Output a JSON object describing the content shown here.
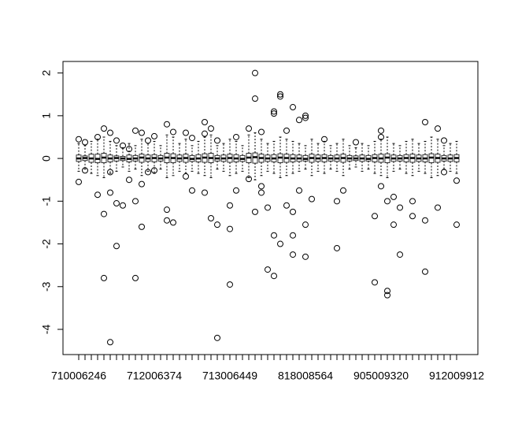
{
  "chart_data": {
    "type": "boxplot",
    "categories": [
      "710006246",
      null,
      null,
      null,
      null,
      null,
      null,
      null,
      null,
      null,
      null,
      null,
      "712006374",
      null,
      null,
      null,
      null,
      null,
      null,
      null,
      null,
      null,
      null,
      null,
      "713006449",
      null,
      null,
      null,
      null,
      null,
      null,
      null,
      null,
      null,
      null,
      null,
      "818008564",
      null,
      null,
      null,
      null,
      null,
      null,
      null,
      null,
      null,
      null,
      null,
      "905009320",
      null,
      null,
      null,
      null,
      null,
      null,
      null,
      null,
      null,
      null,
      null,
      "912009912"
    ],
    "whisker_high": [
      0.35,
      0.3,
      0.4,
      0.45,
      0.5,
      0.4,
      0.3,
      0.25,
      0.35,
      0.3,
      0.45,
      0.35,
      0.4,
      0.3,
      0.55,
      0.5,
      0.35,
      0.45,
      0.3,
      0.4,
      0.5,
      0.55,
      0.3,
      0.35,
      0.45,
      0.4,
      0.3,
      0.55,
      0.6,
      0.45,
      0.35,
      0.4,
      0.5,
      0.45,
      0.4,
      0.35,
      0.3,
      0.45,
      0.35,
      0.4,
      0.3,
      0.35,
      0.45,
      0.3,
      0.25,
      0.35,
      0.3,
      0.4,
      0.45,
      0.5,
      0.35,
      0.3,
      0.4,
      0.45,
      0.35,
      0.4,
      0.5,
      0.45,
      0.3,
      0.35,
      0.4
    ],
    "q3": [
      0.08,
      0.06,
      0.1,
      0.1,
      0.12,
      0.08,
      0.06,
      0.05,
      0.08,
      0.07,
      0.1,
      0.08,
      0.09,
      0.07,
      0.12,
      0.11,
      0.08,
      0.1,
      0.07,
      0.09,
      0.11,
      0.12,
      0.07,
      0.08,
      0.1,
      0.09,
      0.07,
      0.12,
      0.13,
      0.1,
      0.08,
      0.09,
      0.11,
      0.1,
      0.09,
      0.08,
      0.07,
      0.1,
      0.08,
      0.09,
      0.07,
      0.08,
      0.1,
      0.07,
      0.06,
      0.08,
      0.07,
      0.09,
      0.1,
      0.11,
      0.08,
      0.07,
      0.09,
      0.1,
      0.08,
      0.09,
      0.11,
      0.1,
      0.07,
      0.08,
      0.09
    ],
    "median": [
      0.0,
      0.01,
      0.0,
      -0.01,
      0.02,
      0.0,
      0.01,
      0.0,
      -0.01,
      0.0,
      0.02,
      0.0,
      0.01,
      0.0,
      0.02,
      0.01,
      0.0,
      0.01,
      -0.01,
      0.0,
      0.02,
      0.01,
      0.0,
      0.0,
      0.01,
      0.0,
      -0.01,
      0.02,
      0.03,
      0.01,
      0.0,
      0.0,
      0.02,
      0.01,
      0.0,
      0.0,
      -0.01,
      0.01,
      0.0,
      0.01,
      0.0,
      0.0,
      0.01,
      0.0,
      0.0,
      0.0,
      -0.01,
      0.01,
      0.0,
      0.02,
      0.0,
      0.0,
      0.01,
      0.01,
      0.0,
      0.0,
      0.02,
      0.01,
      0.0,
      0.0,
      0.01
    ],
    "q1": [
      -0.07,
      -0.05,
      -0.09,
      -0.1,
      -0.1,
      -0.08,
      -0.06,
      -0.05,
      -0.08,
      -0.06,
      -0.09,
      -0.07,
      -0.08,
      -0.06,
      -0.1,
      -0.1,
      -0.07,
      -0.09,
      -0.07,
      -0.08,
      -0.09,
      -0.1,
      -0.06,
      -0.07,
      -0.09,
      -0.08,
      -0.07,
      -0.1,
      -0.11,
      -0.09,
      -0.07,
      -0.08,
      -0.1,
      -0.09,
      -0.08,
      -0.07,
      -0.06,
      -0.09,
      -0.07,
      -0.08,
      -0.06,
      -0.07,
      -0.09,
      -0.06,
      -0.05,
      -0.07,
      -0.06,
      -0.08,
      -0.09,
      -0.1,
      -0.07,
      -0.06,
      -0.08,
      -0.09,
      -0.07,
      -0.08,
      -0.1,
      -0.09,
      -0.06,
      -0.07,
      -0.08
    ],
    "whisker_low": [
      -0.3,
      -0.25,
      -0.35,
      -0.4,
      -0.45,
      -0.35,
      -0.3,
      -0.2,
      -0.3,
      -0.25,
      -0.4,
      -0.3,
      -0.35,
      -0.25,
      -0.45,
      -0.4,
      -0.3,
      -0.35,
      -0.3,
      -0.35,
      -0.4,
      -0.45,
      -0.25,
      -0.3,
      -0.4,
      -0.35,
      -0.3,
      -0.45,
      -0.5,
      -0.4,
      -0.3,
      -0.35,
      -0.45,
      -0.4,
      -0.35,
      -0.3,
      -0.25,
      -0.4,
      -0.3,
      -0.35,
      -0.25,
      -0.3,
      -0.4,
      -0.25,
      -0.2,
      -0.3,
      -0.25,
      -0.35,
      -0.4,
      -0.45,
      -0.3,
      -0.25,
      -0.35,
      -0.4,
      -0.3,
      -0.35,
      -0.45,
      -0.4,
      -0.25,
      -0.3,
      -0.35
    ],
    "outliers": [
      [
        0,
        0.45
      ],
      [
        0,
        -0.55
      ],
      [
        1,
        -0.28
      ],
      [
        1,
        0.38
      ],
      [
        3,
        -0.85
      ],
      [
        3,
        0.5
      ],
      [
        4,
        -1.3
      ],
      [
        4,
        -2.8
      ],
      [
        4,
        0.7
      ],
      [
        5,
        -4.3
      ],
      [
        5,
        -0.8
      ],
      [
        5,
        0.6
      ],
      [
        5,
        -0.32
      ],
      [
        6,
        -2.05
      ],
      [
        6,
        -1.05
      ],
      [
        6,
        0.42
      ],
      [
        7,
        -1.1
      ],
      [
        7,
        0.3
      ],
      [
        8,
        -0.5
      ],
      [
        8,
        0.22
      ],
      [
        9,
        -2.8
      ],
      [
        9,
        -1.0
      ],
      [
        9,
        0.65
      ],
      [
        10,
        -1.6
      ],
      [
        10,
        -0.6
      ],
      [
        10,
        0.6
      ],
      [
        11,
        -0.32
      ],
      [
        11,
        0.42
      ],
      [
        12,
        0.52
      ],
      [
        12,
        -0.28
      ],
      [
        14,
        -1.2
      ],
      [
        14,
        -1.45
      ],
      [
        14,
        0.8
      ],
      [
        15,
        -1.5
      ],
      [
        15,
        0.62
      ],
      [
        17,
        -0.42
      ],
      [
        17,
        0.6
      ],
      [
        18,
        -0.75
      ],
      [
        18,
        0.48
      ],
      [
        20,
        -0.8
      ],
      [
        20,
        0.85
      ],
      [
        20,
        0.58
      ],
      [
        21,
        -1.4
      ],
      [
        21,
        0.7
      ],
      [
        22,
        -4.2
      ],
      [
        22,
        -1.55
      ],
      [
        22,
        0.42
      ],
      [
        24,
        -1.65
      ],
      [
        24,
        -2.95
      ],
      [
        24,
        -1.1
      ],
      [
        25,
        0.5
      ],
      [
        25,
        -0.75
      ],
      [
        27,
        0.7
      ],
      [
        27,
        -0.48
      ],
      [
        28,
        2.0
      ],
      [
        28,
        1.4
      ],
      [
        28,
        -1.25
      ],
      [
        29,
        -0.65
      ],
      [
        29,
        -0.8
      ],
      [
        29,
        0.62
      ],
      [
        30,
        -2.6
      ],
      [
        30,
        -1.15
      ],
      [
        31,
        -1.8
      ],
      [
        31,
        -2.75
      ],
      [
        31,
        1.1
      ],
      [
        31,
        1.05
      ],
      [
        32,
        -2.0
      ],
      [
        32,
        1.45
      ],
      [
        32,
        1.5
      ],
      [
        33,
        -1.1
      ],
      [
        33,
        0.65
      ],
      [
        34,
        -1.25
      ],
      [
        34,
        -2.25
      ],
      [
        34,
        -1.8
      ],
      [
        34,
        1.2
      ],
      [
        35,
        0.9
      ],
      [
        35,
        -0.75
      ],
      [
        36,
        0.95
      ],
      [
        36,
        1.0
      ],
      [
        36,
        -2.3
      ],
      [
        36,
        -1.55
      ],
      [
        37,
        -0.95
      ],
      [
        39,
        0.45
      ],
      [
        41,
        -2.1
      ],
      [
        41,
        -1.0
      ],
      [
        42,
        -0.75
      ],
      [
        44,
        0.38
      ],
      [
        47,
        -1.35
      ],
      [
        47,
        -2.9
      ],
      [
        48,
        0.65
      ],
      [
        48,
        0.5
      ],
      [
        48,
        -0.65
      ],
      [
        49,
        -3.1
      ],
      [
        49,
        -3.2
      ],
      [
        49,
        -1.0
      ],
      [
        50,
        -0.9
      ],
      [
        50,
        -1.55
      ],
      [
        51,
        -1.15
      ],
      [
        51,
        -2.25
      ],
      [
        53,
        -1.35
      ],
      [
        53,
        -1.0
      ],
      [
        55,
        -2.65
      ],
      [
        55,
        0.85
      ],
      [
        55,
        -1.45
      ],
      [
        57,
        0.7
      ],
      [
        57,
        -1.15
      ],
      [
        58,
        -0.32
      ],
      [
        58,
        0.42
      ],
      [
        60,
        -1.55
      ],
      [
        60,
        -0.52
      ]
    ],
    "ylim": [
      -4.59,
      2.27
    ],
    "yticks": [
      -4,
      -3,
      -2,
      -1,
      0,
      1,
      2
    ]
  }
}
